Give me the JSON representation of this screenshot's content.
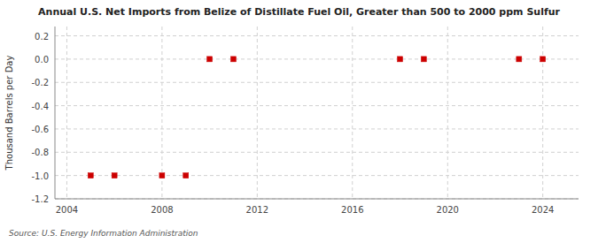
{
  "chart_data": {
    "type": "scatter",
    "title": "Annual U.S. Net Imports from Belize of Distillate Fuel Oil, Greater than 500 to 2000 ppm Sulfur",
    "ylabel": "Thousand Barrels per Day",
    "source": "Source: U.S. Energy Information Administration",
    "color": "#cc0000",
    "marker": "square",
    "grid": true,
    "xlim": [
      2003.5,
      2025.5
    ],
    "ylim": [
      -1.2,
      0.28
    ],
    "xticks": [
      2004,
      2008,
      2012,
      2016,
      2020,
      2024
    ],
    "yticks": [
      -1.2,
      {
        "value": -1.0,
        "label": "-1.0"
      },
      -0.8,
      -0.6,
      -0.4,
      -0.2,
      {
        "value": 0.0,
        "label": "0.0"
      },
      0.2
    ],
    "x": [
      2005,
      2006,
      2008,
      2009,
      2010,
      2011,
      2018,
      2019,
      2023,
      2024
    ],
    "y": [
      -1.0,
      -1.0,
      -1.0,
      -1.0,
      0.0,
      0.0,
      0.0,
      0.0,
      0.0,
      0.0
    ]
  }
}
